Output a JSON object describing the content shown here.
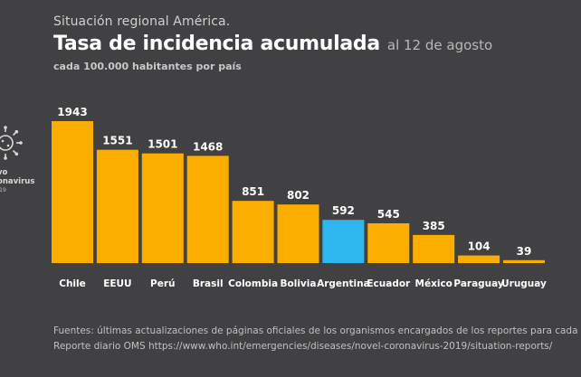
{
  "header": {
    "supertitle": "Situación regional América.",
    "title": "Tasa de incidencia acumulada",
    "date": "al 12 de agosto",
    "subtitle": "cada 100.000 habitantes por país"
  },
  "logo": {
    "line1": "vo",
    "line2": "onavirus",
    "line3": "-19"
  },
  "footer": {
    "line1": "Fuentes: últimas actualizaciones de páginas oficiales de los organismos encargados de los reportes para cada país.",
    "line2": "Reporte diario OMS https://www.who.int/emergencies/diseases/novel-coronavirus-2019/situation-reports/"
  },
  "colors": {
    "background": "#414143",
    "bar": "#FBAE00",
    "highlight": "#2DB7EE"
  },
  "chart_data": {
    "type": "bar",
    "categories": [
      "Chile",
      "EEUU",
      "Perú",
      "Brasil",
      "Colombia",
      "Bolivia",
      "Argentina",
      "Ecuador",
      "México",
      "Paraguay",
      "Uruguay"
    ],
    "values": [
      1943,
      1551,
      1501,
      1468,
      851,
      802,
      592,
      545,
      385,
      104,
      39
    ],
    "highlight_category": "Argentina",
    "title": "Tasa de incidencia acumulada",
    "xlabel": "",
    "ylabel": "",
    "ylim": [
      0,
      1943
    ],
    "grid": false,
    "data_labels": true
  }
}
